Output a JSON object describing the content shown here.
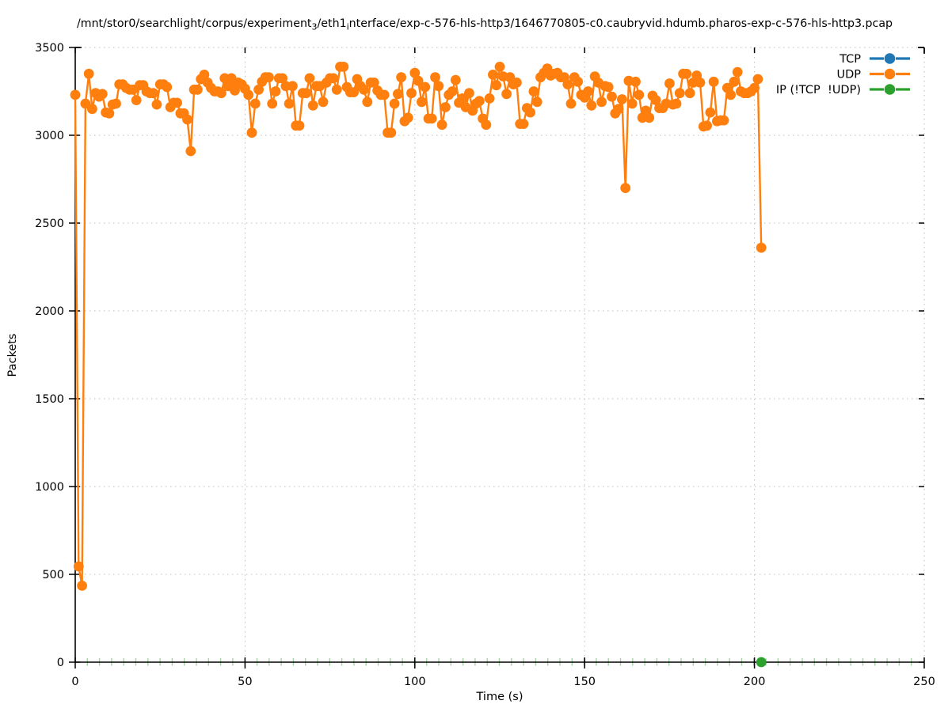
{
  "title": {
    "full": "/mnt/stor0/searchlight/corpus/experiment_3/eth1_interface/exp-c-576-hls-http3/1646770805-c0.caubryvid.hdumb.pharos-exp-c-576-hls-http3.pcap",
    "segments": [
      {
        "text": "/mnt/stor0/searchlight/corpus/experiment"
      },
      {
        "text": "3",
        "sub": true
      },
      {
        "text": "/eth1"
      },
      {
        "text": "i",
        "sub": true
      },
      {
        "text": "nterface/exp-c-576-hls-http3/1646770805-c0.caubryvid.hdumb.pharos-exp-c-576-hls-http3.pcap"
      }
    ]
  },
  "legend": {
    "entries": [
      {
        "id": "tcp",
        "label": "TCP",
        "color": "#1f77b4"
      },
      {
        "id": "udp",
        "label": "UDP",
        "color": "#ff7f0e"
      },
      {
        "id": "ip",
        "label": "IP (!TCP  !UDP)",
        "color": "#2ca02c"
      }
    ]
  },
  "colors": {
    "axis": "#000000",
    "grid": "#bdbdbd",
    "minor_tick": "#a5d2a5",
    "tcp": "#1f77b4",
    "udp": "#ff7f0e",
    "ip": "#2ca02c"
  },
  "chart_data": {
    "type": "line",
    "title_is_filename": true,
    "xlabel": "Time (s)",
    "ylabel": "Packets",
    "xlim": [
      0,
      250
    ],
    "ylim": [
      0,
      3500
    ],
    "x_ticks": [
      0,
      50,
      100,
      150,
      200,
      250
    ],
    "y_ticks": [
      0,
      500,
      1000,
      1500,
      2000,
      2500,
      3000,
      3500
    ],
    "grid": "dotted-major",
    "legend_position": "top-right",
    "series": [
      {
        "name": "TCP",
        "color": "#1f77b4",
        "style": "line-points",
        "x_start": 0,
        "x_step": 1,
        "values": []
      },
      {
        "name": "UDP",
        "color": "#ff7f0e",
        "style": "line-points",
        "x_start": 0,
        "x_step": 1,
        "values": [
          3230,
          545,
          435,
          3180,
          3350,
          3150,
          3240,
          3220,
          3235,
          3130,
          3125,
          3175,
          3180,
          3290,
          3290,
          3270,
          3260,
          3260,
          3200,
          3285,
          3285,
          3250,
          3240,
          3240,
          3175,
          3290,
          3290,
          3275,
          3160,
          3185,
          3185,
          3125,
          3125,
          3090,
          2910,
          3260,
          3260,
          3320,
          3345,
          3300,
          3270,
          3250,
          3250,
          3240,
          3325,
          3280,
          3325,
          3255,
          3300,
          3290,
          3265,
          3230,
          3015,
          3180,
          3260,
          3305,
          3330,
          3330,
          3180,
          3250,
          3325,
          3325,
          3280,
          3180,
          3280,
          3055,
          3055,
          3240,
          3240,
          3325,
          3170,
          3280,
          3280,
          3190,
          3300,
          3325,
          3325,
          3260,
          3390,
          3390,
          3275,
          3245,
          3245,
          3320,
          3280,
          3260,
          3190,
          3300,
          3300,
          3255,
          3230,
          3230,
          3015,
          3015,
          3180,
          3235,
          3330,
          3080,
          3100,
          3240,
          3355,
          3310,
          3190,
          3275,
          3095,
          3095,
          3330,
          3280,
          3060,
          3160,
          3230,
          3250,
          3315,
          3185,
          3210,
          3160,
          3240,
          3140,
          3180,
          3195,
          3095,
          3060,
          3210,
          3345,
          3285,
          3390,
          3335,
          3235,
          3330,
          3290,
          3300,
          3065,
          3065,
          3155,
          3130,
          3250,
          3190,
          3330,
          3355,
          3380,
          3340,
          3350,
          3355,
          3330,
          3330,
          3290,
          3180,
          3330,
          3305,
          3230,
          3215,
          3250,
          3170,
          3335,
          3300,
          3190,
          3280,
          3275,
          3220,
          3125,
          3150,
          3205,
          2700,
          3310,
          3180,
          3305,
          3230,
          3100,
          3140,
          3100,
          3225,
          3200,
          3155,
          3155,
          3180,
          3295,
          3175,
          3180,
          3240,
          3350,
          3350,
          3240,
          3300,
          3340,
          3300,
          3050,
          3055,
          3130,
          3305,
          3080,
          3085,
          3085,
          3270,
          3230,
          3305,
          3360,
          3250,
          3240,
          3240,
          3250,
          3270,
          3320,
          2360
        ]
      },
      {
        "name": "IP (!TCP  !UDP)",
        "color": "#2ca02c",
        "style": "line-points",
        "points": [
          [
            202,
            0
          ]
        ]
      }
    ]
  }
}
